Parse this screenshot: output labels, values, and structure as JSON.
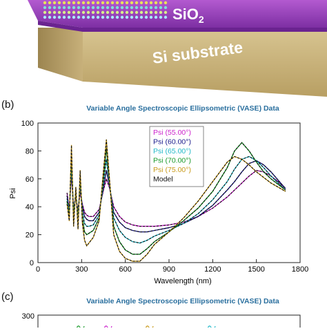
{
  "panel_a": {
    "sio2_label": "SiO",
    "sio2_subscript": "2",
    "substrate_label": "Si substrate"
  },
  "panel_b": {
    "panel_label": "(b)"
  },
  "panel_c": {
    "panel_label": "(c)",
    "title": "Variable Angle Spectroscopic Ellipsometric (VASE) Data",
    "y_tick_top": "300"
  },
  "colors": {
    "title": "#2a6f9e",
    "psi_55": "#cc22cc",
    "psi_60": "#1a1a8c",
    "psi_65": "#22b8c8",
    "psi_70": "#1a9a2a",
    "psi_75": "#c89a1a",
    "model": "#111111"
  },
  "chart_data": [
    {
      "type": "line",
      "title": "Variable Angle Spectroscopic Ellipsometric (VASE) Data",
      "xlabel": "Wavelength (nm)",
      "ylabel": "Psi",
      "xlim": [
        0,
        1800
      ],
      "ylim": [
        0,
        100
      ],
      "x_ticks": [
        "0",
        "300",
        "600",
        "900",
        "1200",
        "1500",
        "1800"
      ],
      "x_tick_values": [
        0,
        300,
        600,
        900,
        1200,
        1500,
        1800
      ],
      "y_ticks": [
        "0",
        "20",
        "40",
        "60",
        "80",
        "100"
      ],
      "y_tick_values": [
        0,
        20,
        40,
        60,
        80,
        100
      ],
      "legend_position": "top-center",
      "x": [
        200,
        215,
        230,
        245,
        260,
        275,
        290,
        305,
        320,
        335,
        350,
        380,
        420,
        450,
        470,
        490,
        520,
        560,
        600,
        650,
        700,
        750,
        800,
        900,
        1000,
        1100,
        1200,
        1300,
        1350,
        1400,
        1450,
        1500,
        1550,
        1600,
        1650,
        1700
      ],
      "series": [
        {
          "name": "Psi (55.00°)",
          "color_key": "psi_55",
          "values": [
            50,
            38,
            62,
            40,
            46,
            38,
            50,
            42,
            36,
            34,
            33,
            33,
            38,
            52,
            60,
            54,
            40,
            33,
            29,
            27,
            26,
            26,
            26,
            27,
            29,
            33,
            39,
            47,
            52,
            57,
            62,
            66,
            65,
            62,
            58,
            53
          ]
        },
        {
          "name": "Psi (60.00°)",
          "color_key": "psi_60",
          "values": [
            48,
            36,
            66,
            38,
            48,
            36,
            54,
            40,
            33,
            31,
            30,
            30,
            36,
            54,
            66,
            56,
            36,
            29,
            25,
            23,
            22,
            22,
            23,
            25,
            28,
            33,
            41,
            52,
            58,
            65,
            71,
            73,
            70,
            65,
            59,
            53
          ]
        },
        {
          "name": "Psi (65.00°)",
          "color_key": "psi_65",
          "values": [
            46,
            34,
            72,
            34,
            50,
            32,
            58,
            36,
            28,
            26,
            26,
            27,
            34,
            58,
            74,
            58,
            32,
            23,
            18,
            15,
            14,
            16,
            19,
            23,
            28,
            35,
            45,
            58,
            67,
            74,
            76,
            73,
            68,
            62,
            57,
            52
          ]
        },
        {
          "name": "Psi (70.00°)",
          "color_key": "psi_70",
          "values": [
            44,
            32,
            78,
            30,
            52,
            28,
            62,
            32,
            22,
            20,
            21,
            23,
            32,
            62,
            82,
            60,
            26,
            15,
            9,
            6,
            6,
            10,
            15,
            22,
            30,
            39,
            51,
            68,
            80,
            86,
            80,
            72,
            65,
            60,
            56,
            52
          ]
        },
        {
          "name": "Psi (75.00°)",
          "color_key": "psi_75",
          "values": [
            42,
            30,
            84,
            26,
            54,
            24,
            66,
            28,
            16,
            12,
            14,
            18,
            30,
            66,
            88,
            62,
            20,
            8,
            3,
            1,
            1,
            6,
            13,
            22,
            32,
            44,
            58,
            72,
            76,
            74,
            70,
            65,
            61,
            57,
            54,
            51
          ]
        }
      ],
      "legend_extra": "Model"
    }
  ]
}
